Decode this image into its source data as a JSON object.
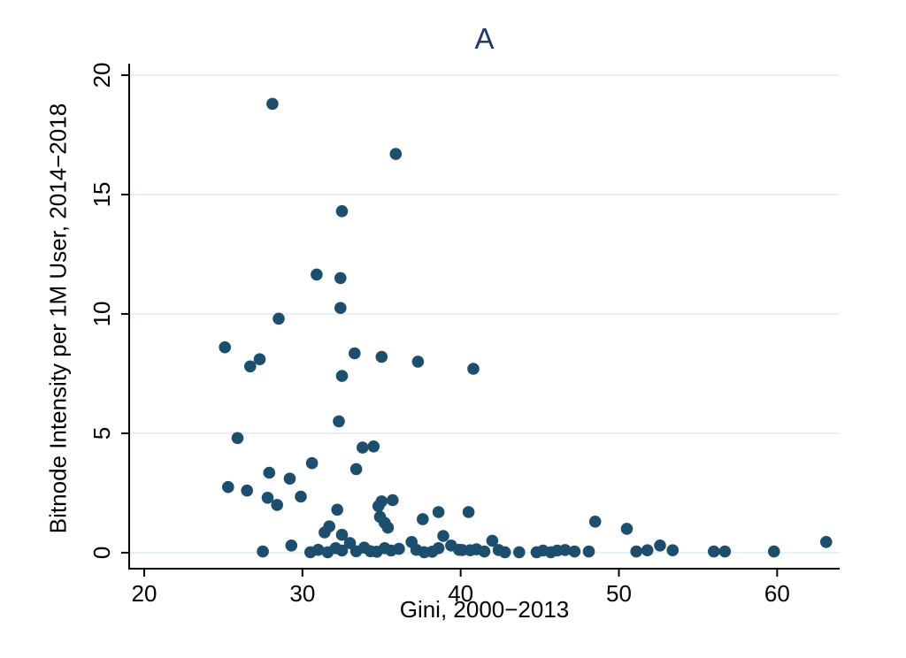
{
  "chart_data": {
    "type": "scatter",
    "title": "A",
    "xlabel": "Gini, 2000−2013",
    "ylabel": "Bitnode Intensity per 1M User, 2014−2018",
    "xlim": [
      19.05,
      63.95
    ],
    "ylim": [
      -0.67,
      20.48
    ],
    "x_ticks": [
      20,
      30,
      40,
      50,
      60
    ],
    "y_ticks": [
      0,
      5,
      10,
      15,
      20
    ],
    "grid": "horizontal-only",
    "legend": "none",
    "title_color": "#233a66",
    "marker_color": "#1e4e6e",
    "grid_color": "#e8f1f4",
    "axis_color": "#000000",
    "points": [
      [
        28.1,
        18.8
      ],
      [
        35.9,
        16.7
      ],
      [
        32.5,
        14.3
      ],
      [
        30.9,
        11.65
      ],
      [
        32.4,
        11.5
      ],
      [
        32.4,
        10.25
      ],
      [
        28.5,
        9.8
      ],
      [
        25.1,
        8.6
      ],
      [
        33.3,
        8.35
      ],
      [
        35.0,
        8.2
      ],
      [
        27.3,
        8.1
      ],
      [
        37.3,
        8.0
      ],
      [
        26.7,
        7.8
      ],
      [
        40.8,
        7.7
      ],
      [
        32.5,
        7.4
      ],
      [
        32.3,
        5.5
      ],
      [
        25.9,
        4.8
      ],
      [
        34.5,
        4.45
      ],
      [
        33.8,
        4.4
      ],
      [
        30.6,
        3.75
      ],
      [
        33.4,
        3.5
      ],
      [
        27.9,
        3.35
      ],
      [
        29.2,
        3.1
      ],
      [
        25.3,
        2.75
      ],
      [
        26.5,
        2.6
      ],
      [
        29.9,
        2.35
      ],
      [
        27.8,
        2.3
      ],
      [
        35.7,
        2.2
      ],
      [
        35.0,
        2.15
      ],
      [
        28.4,
        2.0
      ],
      [
        34.8,
        1.95
      ],
      [
        32.2,
        1.8
      ],
      [
        40.5,
        1.7
      ],
      [
        38.6,
        1.7
      ],
      [
        34.9,
        1.5
      ],
      [
        37.6,
        1.4
      ],
      [
        48.5,
        1.3
      ],
      [
        35.2,
        1.25
      ],
      [
        31.7,
        1.1
      ],
      [
        35.4,
        1.05
      ],
      [
        50.5,
        1.0
      ],
      [
        31.4,
        0.85
      ],
      [
        32.5,
        0.75
      ],
      [
        38.9,
        0.7
      ],
      [
        42.0,
        0.5
      ],
      [
        36.9,
        0.45
      ],
      [
        63.1,
        0.45
      ],
      [
        33.0,
        0.4
      ],
      [
        39.4,
        0.3
      ],
      [
        52.6,
        0.3
      ],
      [
        29.3,
        0.3
      ],
      [
        27.5,
        0.05
      ],
      [
        30.5,
        0.02
      ],
      [
        31.0,
        0.12
      ],
      [
        31.6,
        0.02
      ],
      [
        32.1,
        0.19
      ],
      [
        32.5,
        0.09
      ],
      [
        33.4,
        0.06
      ],
      [
        33.9,
        0.21
      ],
      [
        34.3,
        0.06
      ],
      [
        34.7,
        0.04
      ],
      [
        35.2,
        0.19
      ],
      [
        35.6,
        0.09
      ],
      [
        36.1,
        0.16
      ],
      [
        37.2,
        0.12
      ],
      [
        37.7,
        0.02
      ],
      [
        38.2,
        0.04
      ],
      [
        38.6,
        0.19
      ],
      [
        39.9,
        0.12
      ],
      [
        40.1,
        0.11
      ],
      [
        40.6,
        0.1
      ],
      [
        41.0,
        0.14
      ],
      [
        41.5,
        0.05
      ],
      [
        42.4,
        0.11
      ],
      [
        42.8,
        0.02
      ],
      [
        43.7,
        0.02
      ],
      [
        44.8,
        0.02
      ],
      [
        45.2,
        0.09
      ],
      [
        45.7,
        0.02
      ],
      [
        46.1,
        0.09
      ],
      [
        46.6,
        0.11
      ],
      [
        47.2,
        0.05
      ],
      [
        48.1,
        0.05
      ],
      [
        51.1,
        0.05
      ],
      [
        51.8,
        0.1
      ],
      [
        53.4,
        0.1
      ],
      [
        56.0,
        0.05
      ],
      [
        56.7,
        0.05
      ],
      [
        59.8,
        0.05
      ]
    ]
  }
}
